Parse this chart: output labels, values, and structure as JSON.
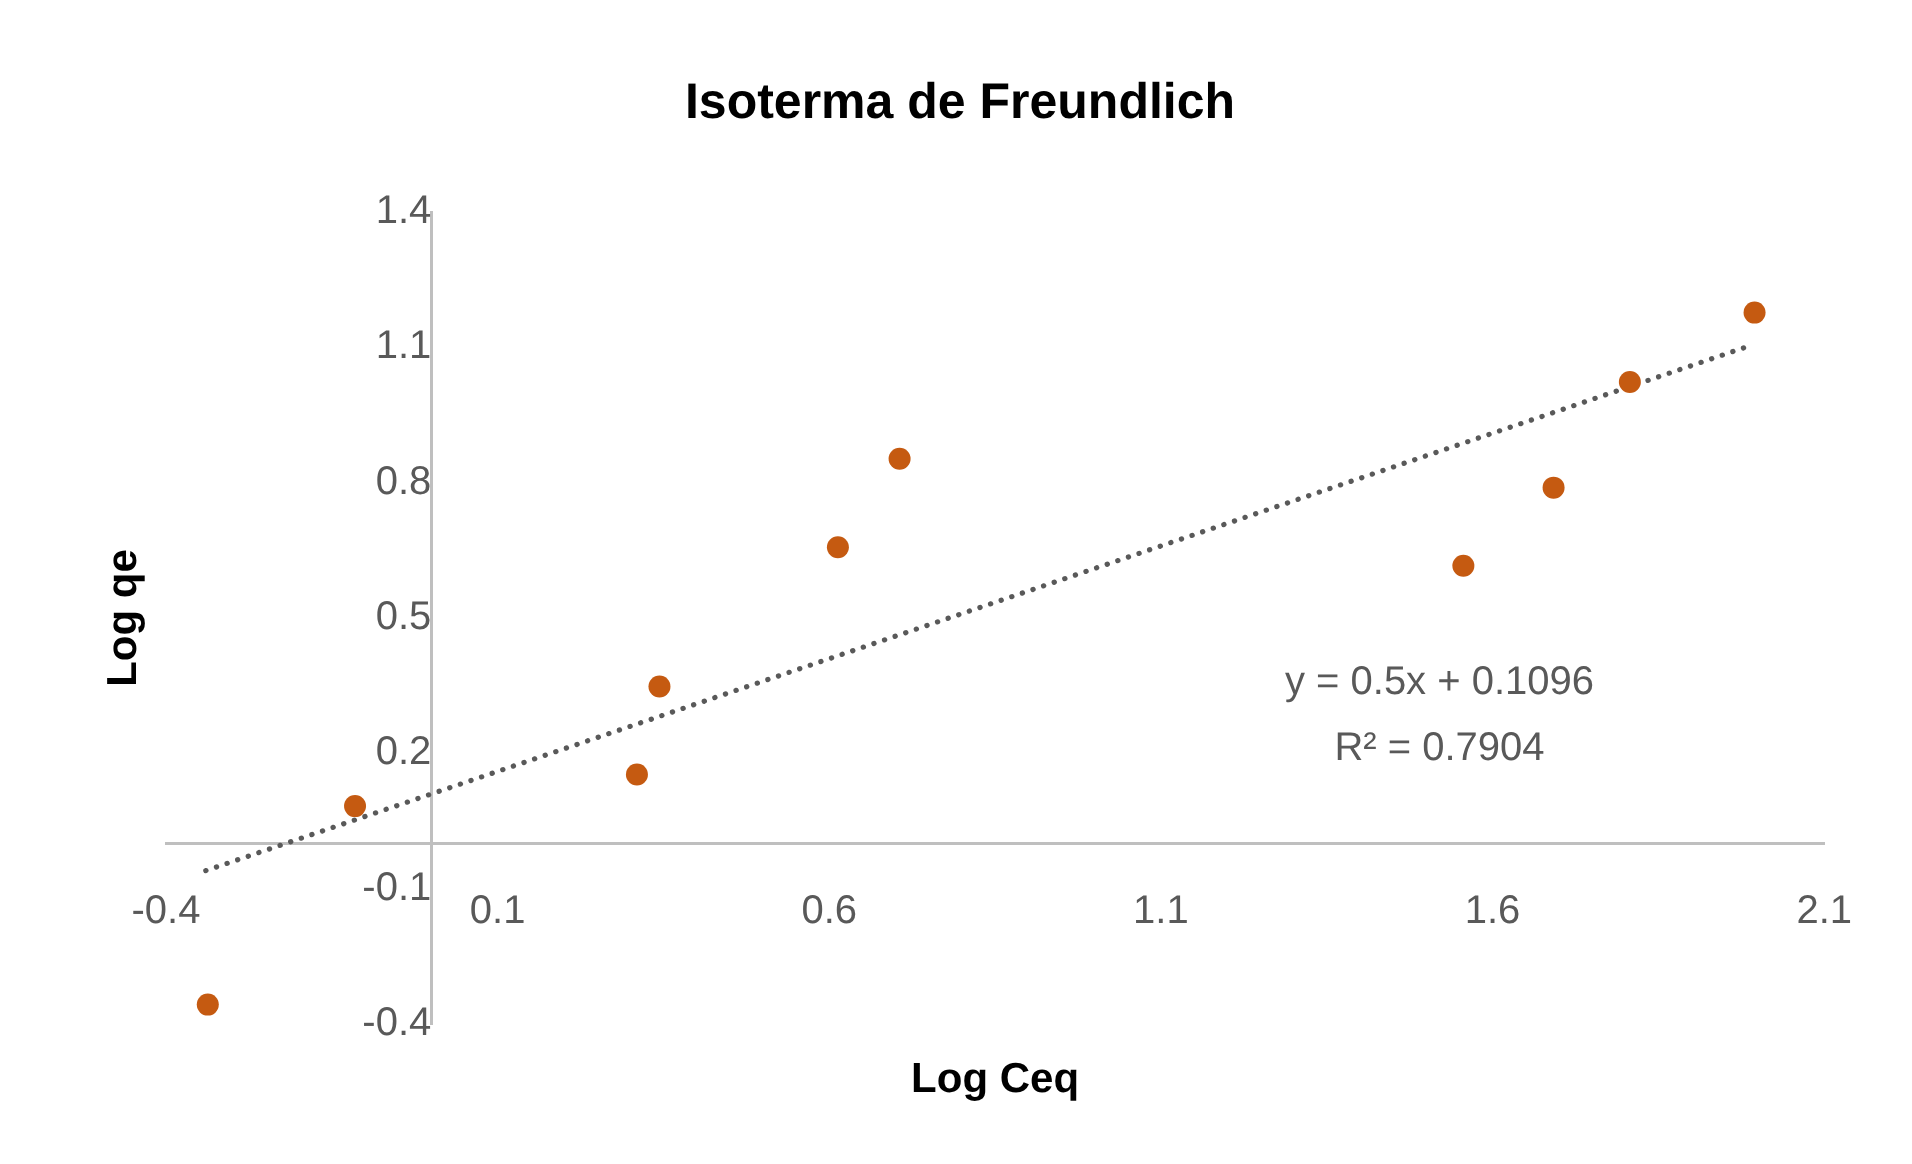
{
  "chart_data": {
    "type": "scatter",
    "title": "Isoterma de Freundlich",
    "xlabel": "Log Ceq",
    "ylabel": "Log qe",
    "xlim": [
      -0.4,
      2.1
    ],
    "xticks": [
      -0.4,
      0.1,
      0.6,
      1.1,
      1.6,
      2.1
    ],
    "ylim": [
      -0.4,
      1.4
    ],
    "yticks": [
      -0.4,
      -0.1,
      0.2,
      0.5,
      0.8,
      1.1,
      1.4
    ],
    "grid": false,
    "legend": false,
    "marker": "circle",
    "series": [
      {
        "color": "#c55a11",
        "x": [
          -0.337,
          -0.115,
          0.31,
          0.344,
          0.613,
          0.706,
          1.556,
          1.692,
          1.807,
          1.995
        ],
        "values": [
          -0.357,
          0.083,
          0.153,
          0.348,
          0.657,
          0.853,
          0.616,
          0.789,
          1.023,
          1.177
        ]
      },
      {
        "type": "line",
        "color": "#595959",
        "line_style": "dotted",
        "marker": "none",
        "x": [
          -0.34,
          1.983
        ],
        "values": [
          -0.06,
          1.101
        ]
      }
    ],
    "annotations": [
      "y = 0.5x + 0.1096",
      "R² = 0.7904"
    ]
  }
}
